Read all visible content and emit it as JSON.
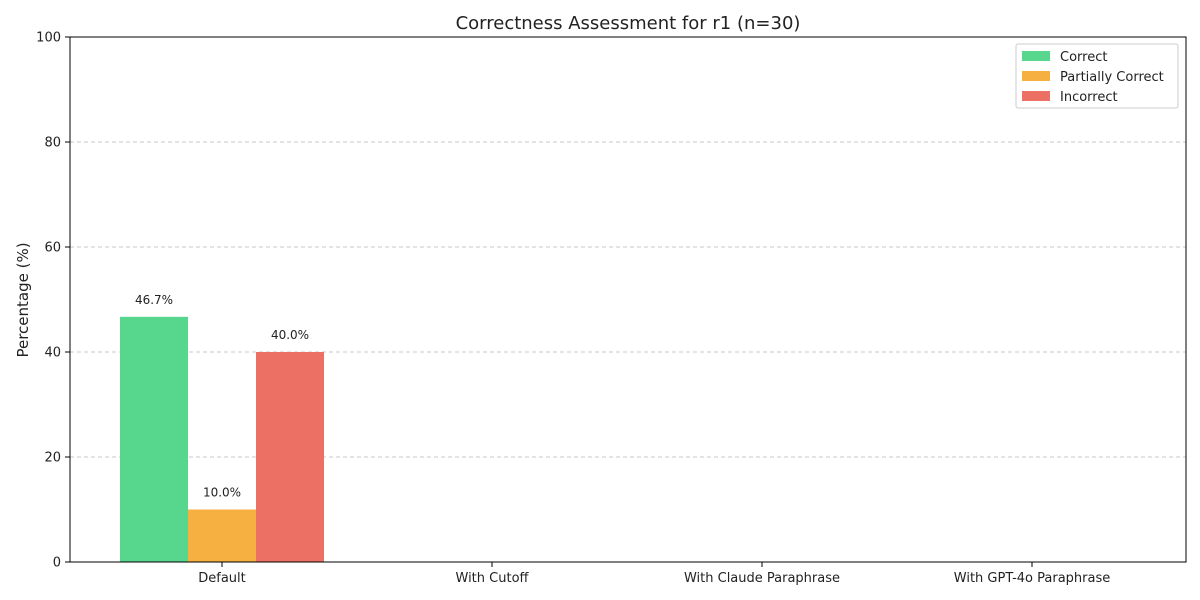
{
  "chart_data": {
    "type": "bar",
    "title": "Correctness Assessment for r1 (n=30)",
    "xlabel": "",
    "ylabel": "Percentage (%)",
    "ylim": [
      0,
      100
    ],
    "yticks": [
      0,
      20,
      40,
      60,
      80,
      100
    ],
    "grid": true,
    "legend_position": "top-right",
    "categories": [
      "Default",
      "With Cutoff",
      "With Claude Paraphrase",
      "With GPT-4o Paraphrase"
    ],
    "series": [
      {
        "name": "Correct",
        "color": "#57d68d",
        "values": [
          46.7,
          0,
          0,
          0
        ],
        "labels": [
          "46.7%",
          "",
          "",
          ""
        ]
      },
      {
        "name": "Partially Correct",
        "color": "#f5b041",
        "values": [
          10.0,
          0,
          0,
          0
        ],
        "labels": [
          "10.0%",
          "",
          "",
          ""
        ]
      },
      {
        "name": "Incorrect",
        "color": "#ec7063",
        "values": [
          40.0,
          0,
          0,
          0
        ],
        "labels": [
          "40.0%",
          "",
          "",
          ""
        ]
      }
    ]
  }
}
